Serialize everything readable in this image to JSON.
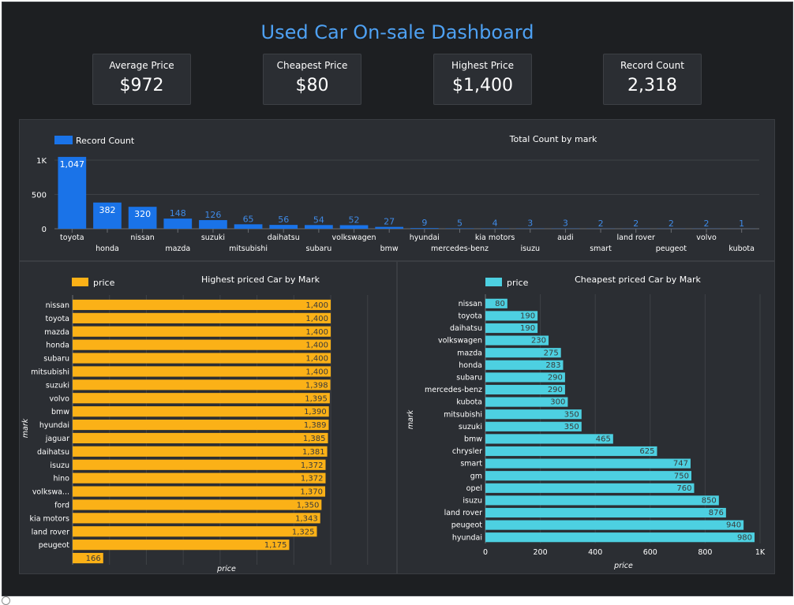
{
  "title": "Used Car On-sale Dashboard",
  "kpis": [
    {
      "label": "Average Price",
      "value": "$972"
    },
    {
      "label": "Cheapest Price",
      "value": "$80"
    },
    {
      "label": "Highest Price",
      "value": "$1,400"
    },
    {
      "label": "Record Count",
      "value": "2,318"
    }
  ],
  "colors": {
    "title": "#4ea1f3",
    "count_bar": "#1a73e8",
    "highest_bar": "#fbb117",
    "cheapest_bar": "#4dd0e1"
  },
  "chart_data": [
    {
      "type": "bar",
      "title": "Total Count by mark",
      "legend": [
        "Record Count"
      ],
      "legend_position": "top-left",
      "yticks": [
        "0",
        "500",
        "1K"
      ],
      "ylim": [
        0,
        1100
      ],
      "grid": true,
      "categories": [
        "toyota",
        "honda",
        "nissan",
        "mazda",
        "suzuki",
        "mitsubishi",
        "daihatsu",
        "subaru",
        "volkswagen",
        "bmw",
        "hyundai",
        "mercedes-benz",
        "kia motors",
        "isuzu",
        "audi",
        "smart",
        "land rover",
        "peugeot",
        "volvo",
        "kubota"
      ],
      "values": [
        1047,
        382,
        320,
        148,
        126,
        65,
        56,
        54,
        52,
        27,
        9,
        5,
        4,
        3,
        3,
        2,
        2,
        2,
        2,
        1
      ],
      "labels": [
        "1,047",
        "382",
        "320",
        "148",
        "126",
        "65",
        "56",
        "54",
        "52",
        "27",
        "9",
        "5",
        "4",
        "3",
        "3",
        "2",
        "2",
        "2",
        "2",
        "1"
      ]
    },
    {
      "type": "bar",
      "orientation": "horizontal",
      "title": "Highest priced Car by Mark",
      "legend": [
        "price"
      ],
      "legend_position": "top-left",
      "xlabel": "price",
      "ylabel": "mark",
      "xlim": [
        0,
        2000
      ],
      "grid": true,
      "categories": [
        "nissan",
        "toyota",
        "mazda",
        "honda",
        "subaru",
        "mitsubishi",
        "suzuki",
        "volvo",
        "bmw",
        "hyundai",
        "jaguar",
        "daihatsu",
        "isuzu",
        "hino",
        "volkswa...",
        "ford",
        "kia motors",
        "land rover",
        "peugeot",
        ""
      ],
      "values": [
        1400,
        1400,
        1400,
        1400,
        1400,
        1400,
        1398,
        1395,
        1390,
        1389,
        1385,
        1381,
        1372,
        1372,
        1370,
        1350,
        1343,
        1325,
        1175,
        166
      ],
      "labels": [
        "1,400",
        "1,400",
        "1,400",
        "1,400",
        "1,400",
        "1,400",
        "1,398",
        "1,395",
        "1,390",
        "1,389",
        "1,385",
        "1,381",
        "1,372",
        "1,372",
        "1,370",
        "1,350",
        "1,343",
        "1,325",
        "1,175",
        "166"
      ]
    },
    {
      "type": "bar",
      "orientation": "horizontal",
      "title": "Cheapest priced Car by Mark",
      "legend": [
        "price"
      ],
      "legend_position": "top-left",
      "xlabel": "price",
      "ylabel": "mark",
      "xlim": [
        0,
        1000
      ],
      "xticks": [
        "0",
        "200",
        "400",
        "600",
        "800",
        "1K"
      ],
      "grid": true,
      "categories": [
        "nissan",
        "toyota",
        "daihatsu",
        "volkswagen",
        "mazda",
        "honda",
        "subaru",
        "mercedes-benz",
        "kubota",
        "mitsubishi",
        "suzuki",
        "bmw",
        "chrysler",
        "smart",
        "gm",
        "opel",
        "isuzu",
        "land rover",
        "peugeot",
        "hyundai"
      ],
      "values": [
        80,
        190,
        190,
        230,
        275,
        283,
        290,
        290,
        300,
        350,
        350,
        465,
        625,
        747,
        750,
        760,
        850,
        876,
        940,
        980
      ],
      "labels": [
        "80",
        "190",
        "190",
        "230",
        "275",
        "283",
        "290",
        "290",
        "300",
        "350",
        "350",
        "465",
        "625",
        "747",
        "750",
        "760",
        "850",
        "876",
        "940",
        "980"
      ]
    }
  ]
}
